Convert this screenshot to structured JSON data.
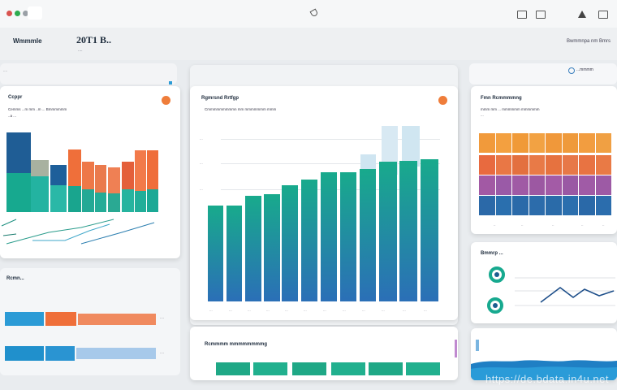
{
  "topbar": {
    "icons": [
      "window-icon",
      "copy-icon",
      "warning-icon",
      "close-icon"
    ]
  },
  "header": {
    "app_title": "Wmmmle",
    "date": "20T1 B..",
    "date_sub": "....",
    "right_text": "Bwmmnpa nm Bmrs"
  },
  "left_top_card": {
    "title": "Ccppr",
    "subtitle": "Cemms ...m mm ..m ... Bmmmmmm",
    "subtitle2": "..a ..."
  },
  "left_bottom_card": {
    "title": "Rcmn...",
    "rows": [
      {
        "values": [
          0.62,
          0.24
        ],
        "label": "...."
      },
      {
        "values": [
          0.62,
          0.52
        ],
        "label": "...."
      }
    ]
  },
  "center_card": {
    "title": "Rgmrsnd Rrtfgp",
    "subtitle": "Cmmmmmmmmmn mm mmmmmmm mmm",
    "ticks": [
      "...",
      "...",
      "..."
    ],
    "xlabels": [
      "...",
      "...",
      "...",
      "...",
      "...",
      "...",
      "...",
      "...",
      "...",
      "...",
      "...",
      "...",
      "..."
    ]
  },
  "center_bottom_card": {
    "title": "Rcmmmm mmmmmmmmg"
  },
  "right_top_card": {
    "title": "Fmn Rcmmmmng",
    "subtitle": "mmm mm ... mmmmmm mmmmmm",
    "subtitle2": "..."
  },
  "right_mid_card": {
    "title": "Bmmrp ..."
  },
  "right_search": {
    "text": "...mmmm"
  },
  "watermark": "https://de.bdata.in4u.net",
  "colors": {
    "teal": "#17a98f",
    "blue": "#2a6fb5",
    "orange": "#ef7d3a",
    "purple": "#7a5aa8",
    "sky": "#2b9bd6"
  }
}
